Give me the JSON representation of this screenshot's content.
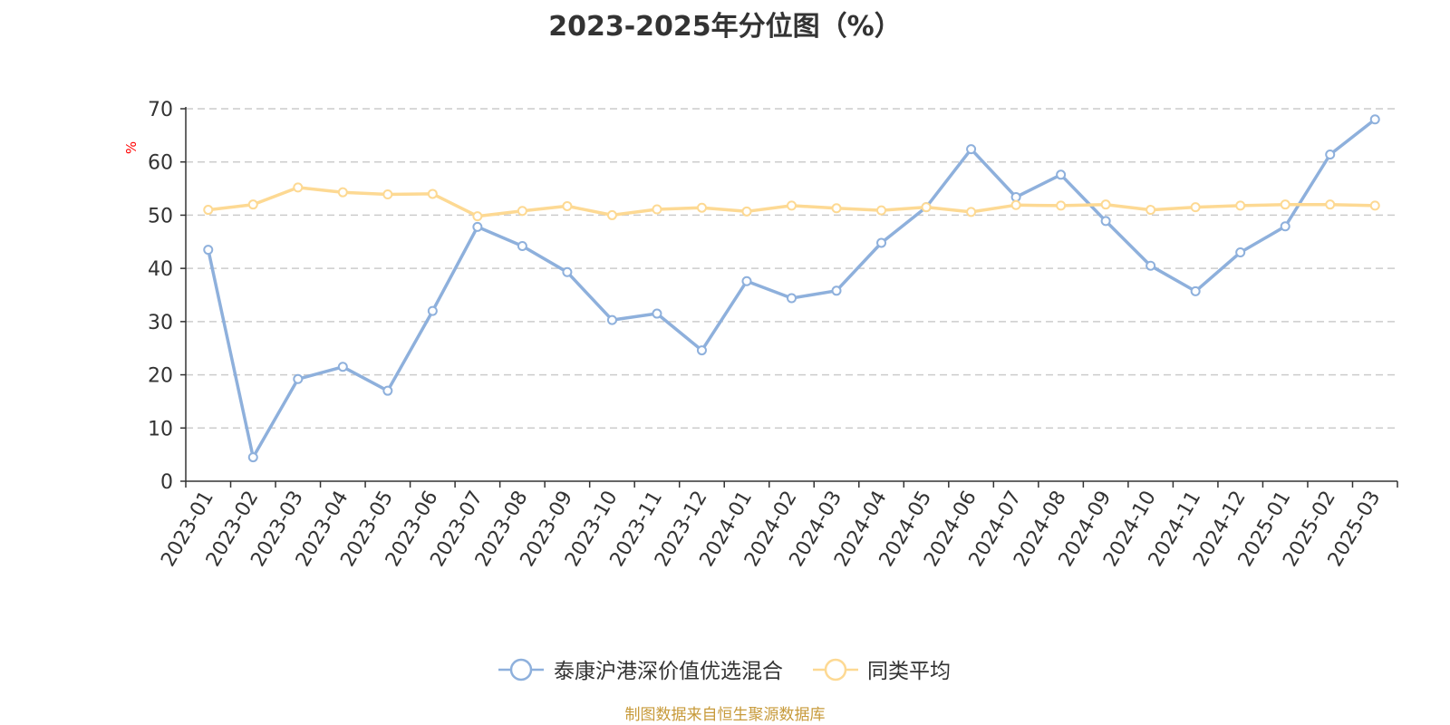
{
  "title": "2023-2025年分位图（%）",
  "source_note": "制图数据来自恒生聚源数据库",
  "colors": {
    "series_1": "#8eb0dc",
    "series_2": "#fdd993",
    "unit": "#ff0000",
    "axis": "#333333",
    "grid": "#cccccc",
    "source": "#c79a3a"
  },
  "chart_data": {
    "type": "line",
    "title": "2023-2025年分位图（%）",
    "xlabel": "",
    "ylabel": "%",
    "ylim": [
      0,
      70
    ],
    "yticks": [
      0,
      10,
      20,
      30,
      40,
      50,
      60,
      70
    ],
    "grid": "horizontal dashed",
    "legend_position": "bottom-center",
    "categories": [
      "2023-01",
      "2023-02",
      "2023-03",
      "2023-04",
      "2023-05",
      "2023-06",
      "2023-07",
      "2023-08",
      "2023-09",
      "2023-10",
      "2023-11",
      "2023-12",
      "2024-01",
      "2024-02",
      "2024-03",
      "2024-04",
      "2024-05",
      "2024-06",
      "2024-07",
      "2024-08",
      "2024-09",
      "2024-10",
      "2024-11",
      "2024-12",
      "2025-01",
      "2025-02",
      "2025-03"
    ],
    "series": [
      {
        "name": "泰康沪港深价值优选混合",
        "color": "#8eb0dc",
        "values": [
          43.5,
          4.5,
          19.2,
          21.5,
          17.0,
          32.0,
          47.8,
          44.2,
          39.3,
          30.3,
          31.5,
          24.6,
          37.6,
          34.4,
          35.8,
          44.8,
          51.5,
          62.4,
          53.4,
          57.6,
          48.9,
          40.5,
          35.7,
          43.0,
          47.9,
          61.4,
          68.0
        ]
      },
      {
        "name": "同类平均",
        "color": "#fdd993",
        "values": [
          51.0,
          52.0,
          55.2,
          54.3,
          53.9,
          54.0,
          49.8,
          50.8,
          51.7,
          50.0,
          51.1,
          51.4,
          50.7,
          51.8,
          51.3,
          50.9,
          51.5,
          50.6,
          51.9,
          51.8,
          52.0,
          51.0,
          51.5,
          51.8,
          52.0,
          52.0,
          51.8
        ]
      }
    ]
  }
}
